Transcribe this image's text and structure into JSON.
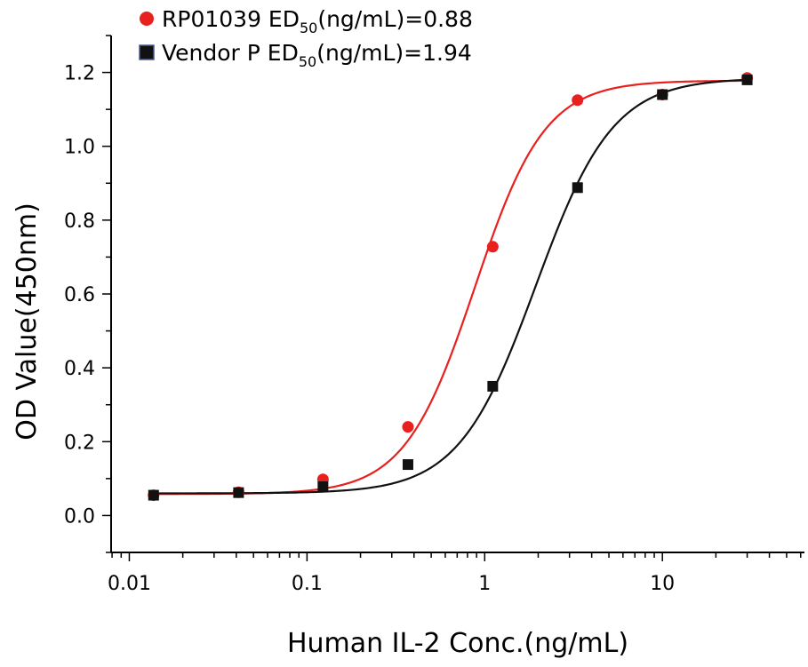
{
  "chart_data": {
    "type": "scatter",
    "xlabel": "Human IL-2 Conc.(ng/mL)",
    "ylabel": "OD Value(450nm)",
    "x_scale": "log",
    "xlim": [
      0.0079,
      63
    ],
    "ylim": [
      -0.1,
      1.3
    ],
    "x_ticks": [
      {
        "value": 0.01,
        "label": "0.01"
      },
      {
        "value": 0.1,
        "label": "0.1"
      },
      {
        "value": 1,
        "label": "1"
      },
      {
        "value": 10,
        "label": "10"
      }
    ],
    "y_ticks": [
      {
        "value": 0.0,
        "label": "0.0"
      },
      {
        "value": 0.2,
        "label": "0.2"
      },
      {
        "value": 0.4,
        "label": "0.4"
      },
      {
        "value": 0.6,
        "label": "0.6"
      },
      {
        "value": 0.8,
        "label": "0.8"
      },
      {
        "value": 1.0,
        "label": "1.0"
      },
      {
        "value": 1.2,
        "label": "1.2"
      }
    ],
    "grid": false,
    "legend_position": "top-left",
    "series": [
      {
        "name_main": "RP01039 ED",
        "name_sub": "50",
        "name_rest": "(ng/mL)=0.88",
        "color": "#e8201e",
        "marker": "circle",
        "x": [
          0.0137,
          0.0412,
          0.123,
          0.37,
          1.11,
          3.33,
          10,
          30
        ],
        "y": [
          0.055,
          0.063,
          0.098,
          0.24,
          0.728,
          1.125,
          1.14,
          1.185
        ],
        "fit": {
          "model": "4PL",
          "bottom": 0.058,
          "top": 1.178,
          "ec50": 0.88,
          "hill": 2.2
        }
      },
      {
        "name_main": "Vendor P ED",
        "name_sub": "50",
        "name_rest": "(ng/mL)=1.94",
        "color": "#111111",
        "marker": "square",
        "x": [
          0.0137,
          0.0412,
          0.123,
          0.37,
          1.11,
          3.33,
          10,
          30
        ],
        "y": [
          0.055,
          0.062,
          0.078,
          0.138,
          0.35,
          0.888,
          1.14,
          1.18
        ],
        "fit": {
          "model": "4PL",
          "bottom": 0.06,
          "top": 1.185,
          "ec50": 1.94,
          "hill": 2.0
        }
      }
    ]
  }
}
